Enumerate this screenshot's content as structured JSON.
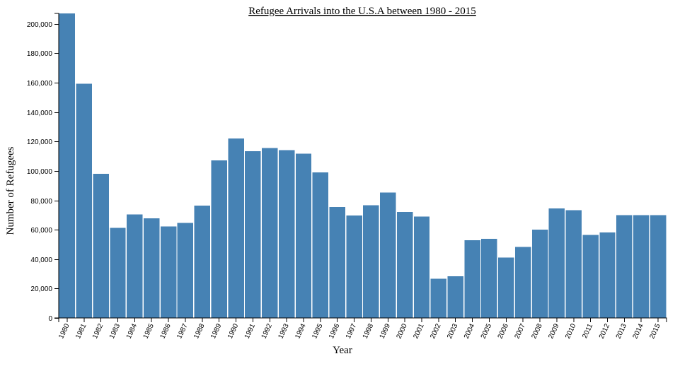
{
  "chart_data": {
    "type": "bar",
    "title": "Refugee Arrivals into the U.S.A between 1980 - 2015",
    "xlabel": "Year",
    "ylabel": "Number of Refugees",
    "categories": [
      "1980",
      "1981",
      "1982",
      "1983",
      "1984",
      "1985",
      "1986",
      "1987",
      "1988",
      "1989",
      "1990",
      "1991",
      "1992",
      "1993",
      "1994",
      "1995",
      "1996",
      "1997",
      "1998",
      "1999",
      "2000",
      "2001",
      "2002",
      "2003",
      "2004",
      "2005",
      "2006",
      "2007",
      "2008",
      "2009",
      "2010",
      "2011",
      "2012",
      "2013",
      "2014",
      "2015"
    ],
    "values": [
      207116,
      159252,
      98096,
      61218,
      70393,
      67704,
      62146,
      64528,
      76483,
      107070,
      122066,
      113389,
      115548,
      114181,
      111680,
      98973,
      75421,
      69653,
      76712,
      85285,
      72143,
      68920,
      26785,
      28286,
      52840,
      53738,
      41150,
      48218,
      60108,
      74602,
      73293,
      56384,
      58179,
      69909,
      69975,
      69920
    ],
    "ylim": [
      0,
      207116
    ],
    "yticks": [
      0,
      20000,
      40000,
      60000,
      80000,
      100000,
      120000,
      140000,
      160000,
      180000,
      200000
    ],
    "ytick_labels": [
      "0",
      "20,000",
      "40,000",
      "60,000",
      "80,000",
      "100,000",
      "120,000",
      "140,000",
      "160,000",
      "180,000",
      "200,000"
    ],
    "grid": false,
    "colors": {
      "bar": "#4682b4",
      "axis": "#000000"
    }
  }
}
